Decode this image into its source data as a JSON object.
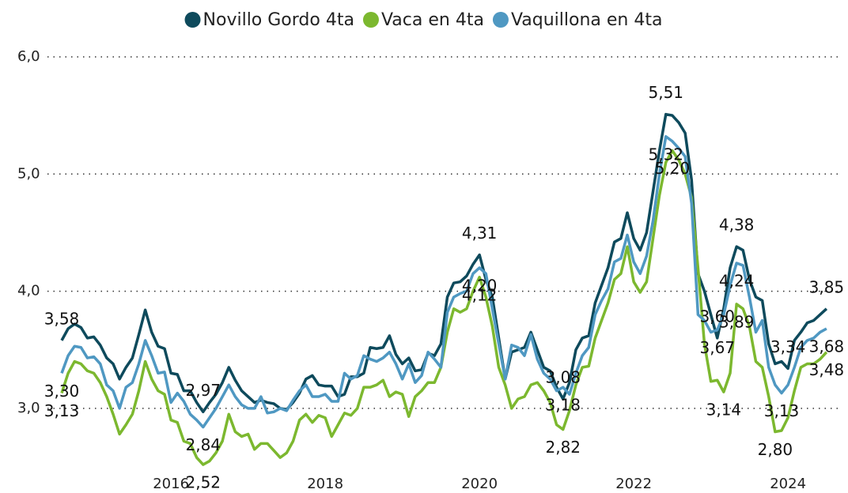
{
  "chart_data": {
    "type": "line",
    "categories": [
      null,
      null,
      null,
      null,
      null,
      null,
      null,
      null,
      null,
      null,
      null,
      null,
      null,
      null,
      null,
      null,
      null,
      "2016",
      null,
      null,
      null,
      null,
      null,
      null,
      null,
      null,
      null,
      null,
      null,
      null,
      null,
      null,
      null,
      null,
      null,
      null,
      null,
      null,
      null,
      null,
      null,
      "2018",
      null,
      null,
      null,
      null,
      null,
      null,
      null,
      null,
      null,
      null,
      null,
      null,
      null,
      null,
      null,
      null,
      null,
      null,
      null,
      null,
      null,
      null,
      null,
      "2020",
      null,
      null,
      null,
      null,
      null,
      null,
      null,
      null,
      null,
      null,
      null,
      null,
      null,
      null,
      null,
      null,
      null,
      null,
      null,
      null,
      null,
      null,
      null,
      "2022",
      null,
      null,
      null,
      null,
      null,
      null,
      null,
      null,
      null,
      null,
      null,
      null,
      null,
      null,
      null,
      null,
      null,
      null,
      null,
      null,
      null,
      null,
      null,
      "2024",
      null,
      null,
      null,
      null,
      null,
      null
    ],
    "ylim": [
      2.5,
      6.0
    ],
    "yticks": [
      {
        "value": 3,
        "label": "3,0"
      },
      {
        "value": 4,
        "label": "4,0"
      },
      {
        "value": 5,
        "label": "5,0"
      },
      {
        "value": 6,
        "label": "6,0"
      }
    ],
    "grid": true,
    "legend": "top",
    "series": [
      {
        "name": "Novillo Gordo 4ta",
        "color": "#0e4a5c",
        "values": [
          3.58,
          3.68,
          3.72,
          3.69,
          3.6,
          3.61,
          3.54,
          3.43,
          3.38,
          3.25,
          3.35,
          3.43,
          3.63,
          3.84,
          3.65,
          3.53,
          3.51,
          3.3,
          3.29,
          3.15,
          3.15,
          3.05,
          2.97,
          3.05,
          3.12,
          3.22,
          3.35,
          3.24,
          3.15,
          3.1,
          3.05,
          3.07,
          3.05,
          3.04,
          3.0,
          2.99,
          3.05,
          3.13,
          3.25,
          3.28,
          3.2,
          3.19,
          3.19,
          3.1,
          3.12,
          3.27,
          3.27,
          3.3,
          3.52,
          3.51,
          3.52,
          3.62,
          3.46,
          3.38,
          3.43,
          3.32,
          3.33,
          3.47,
          3.45,
          3.55,
          3.95,
          4.07,
          4.08,
          4.13,
          4.23,
          4.31,
          4.1,
          3.95,
          3.6,
          3.25,
          3.48,
          3.5,
          3.52,
          3.65,
          3.5,
          3.35,
          3.32,
          3.18,
          3.08,
          3.22,
          3.5,
          3.6,
          3.62,
          3.9,
          4.05,
          4.2,
          4.42,
          4.45,
          4.67,
          4.45,
          4.35,
          4.5,
          4.85,
          5.2,
          5.51,
          5.5,
          5.44,
          5.35,
          4.95,
          4.15,
          4.0,
          3.8,
          3.6,
          3.85,
          4.2,
          4.38,
          4.35,
          4.1,
          3.95,
          3.92,
          3.55,
          3.38,
          3.4,
          3.34,
          3.58,
          3.65,
          3.73,
          3.75,
          3.8,
          3.85
        ],
        "value_labels": [
          "3,58",
          null,
          null,
          null,
          null,
          null,
          null,
          null,
          null,
          null,
          null,
          null,
          null,
          null,
          null,
          null,
          null,
          null,
          null,
          null,
          null,
          null,
          "2,97",
          null,
          null,
          null,
          null,
          null,
          null,
          null,
          null,
          null,
          null,
          null,
          null,
          null,
          null,
          null,
          null,
          null,
          null,
          null,
          null,
          null,
          null,
          null,
          null,
          null,
          null,
          null,
          null,
          null,
          null,
          null,
          null,
          null,
          null,
          null,
          null,
          null,
          null,
          null,
          null,
          null,
          null,
          "4,31",
          null,
          null,
          null,
          null,
          null,
          null,
          null,
          null,
          null,
          null,
          null,
          null,
          "3,08",
          null,
          null,
          null,
          null,
          null,
          null,
          null,
          null,
          null,
          null,
          null,
          null,
          null,
          null,
          null,
          "5,51",
          null,
          null,
          null,
          null,
          null,
          null,
          null,
          "3,60",
          null,
          null,
          "4,38",
          null,
          null,
          null,
          null,
          null,
          null,
          null,
          "3,34",
          null,
          null,
          null,
          null,
          null,
          "3,85"
        ]
      },
      {
        "name": "Vaca en 4ta",
        "color": "#7cb82f",
        "values": [
          3.13,
          3.3,
          3.4,
          3.38,
          3.32,
          3.3,
          3.22,
          3.1,
          2.95,
          2.78,
          2.86,
          2.95,
          3.15,
          3.4,
          3.25,
          3.15,
          3.12,
          2.9,
          2.88,
          2.72,
          2.7,
          2.58,
          2.52,
          2.55,
          2.62,
          2.72,
          2.95,
          2.8,
          2.76,
          2.78,
          2.65,
          2.7,
          2.7,
          2.64,
          2.58,
          2.62,
          2.72,
          2.9,
          2.95,
          2.88,
          2.94,
          2.92,
          2.76,
          2.86,
          2.96,
          2.94,
          3.0,
          3.18,
          3.18,
          3.2,
          3.24,
          3.1,
          3.14,
          3.12,
          2.93,
          3.1,
          3.15,
          3.22,
          3.22,
          3.35,
          3.65,
          3.85,
          3.82,
          3.85,
          4.0,
          4.12,
          3.95,
          3.7,
          3.35,
          3.2,
          3.0,
          3.08,
          3.1,
          3.2,
          3.22,
          3.15,
          3.05,
          2.86,
          2.82,
          2.98,
          3.2,
          3.35,
          3.36,
          3.6,
          3.75,
          3.9,
          4.1,
          4.15,
          4.38,
          4.08,
          3.99,
          4.08,
          4.45,
          4.82,
          5.1,
          5.2,
          5.12,
          5.0,
          4.8,
          4.2,
          3.55,
          3.23,
          3.24,
          3.14,
          3.3,
          3.89,
          3.85,
          3.7,
          3.4,
          3.35,
          3.1,
          2.8,
          2.81,
          2.92,
          3.15,
          3.35,
          3.38,
          3.38,
          3.42,
          3.48
        ],
        "value_labels": [
          "3,13",
          null,
          null,
          null,
          null,
          null,
          null,
          null,
          null,
          null,
          null,
          null,
          null,
          null,
          null,
          null,
          null,
          null,
          null,
          null,
          null,
          null,
          "2,52",
          null,
          null,
          null,
          null,
          null,
          null,
          null,
          null,
          null,
          null,
          null,
          null,
          null,
          null,
          null,
          null,
          null,
          null,
          null,
          null,
          null,
          null,
          null,
          null,
          null,
          null,
          null,
          null,
          null,
          null,
          null,
          null,
          null,
          null,
          null,
          null,
          null,
          null,
          null,
          null,
          null,
          null,
          "4,12",
          null,
          null,
          null,
          null,
          null,
          null,
          null,
          null,
          null,
          null,
          null,
          null,
          "2,82",
          null,
          null,
          null,
          null,
          null,
          null,
          null,
          null,
          null,
          null,
          null,
          null,
          null,
          null,
          null,
          null,
          "5,20",
          null,
          null,
          null,
          null,
          null,
          null,
          null,
          "3,14",
          null,
          "3,89",
          null,
          null,
          null,
          null,
          null,
          "2,80",
          null,
          null,
          null,
          null,
          null,
          null,
          null,
          "3,48"
        ]
      },
      {
        "name": "Vaquillona en 4ta",
        "color": "#4f98c2",
        "values": [
          3.3,
          3.45,
          3.53,
          3.52,
          3.43,
          3.44,
          3.38,
          3.2,
          3.15,
          3.0,
          3.18,
          3.22,
          3.38,
          3.58,
          3.45,
          3.3,
          3.31,
          3.05,
          3.13,
          3.06,
          2.95,
          2.9,
          2.84,
          2.92,
          3.0,
          3.1,
          3.2,
          3.1,
          3.03,
          3.0,
          3.0,
          3.1,
          2.96,
          2.97,
          3.0,
          2.98,
          3.07,
          3.15,
          3.2,
          3.1,
          3.1,
          3.12,
          3.06,
          3.06,
          3.3,
          3.25,
          3.28,
          3.45,
          3.42,
          3.4,
          3.43,
          3.48,
          3.38,
          3.25,
          3.38,
          3.22,
          3.28,
          3.48,
          3.42,
          3.35,
          3.82,
          3.95,
          3.98,
          4.0,
          4.15,
          4.2,
          4.15,
          3.85,
          3.55,
          3.25,
          3.54,
          3.52,
          3.45,
          3.63,
          3.42,
          3.3,
          3.25,
          3.15,
          3.18,
          3.12,
          3.3,
          3.45,
          3.52,
          3.8,
          3.92,
          4.02,
          4.25,
          4.28,
          4.48,
          4.25,
          4.15,
          4.3,
          4.6,
          5.0,
          5.32,
          5.28,
          5.22,
          5.15,
          4.75,
          3.8,
          3.75,
          3.65,
          3.67,
          3.8,
          4.05,
          4.24,
          4.22,
          3.95,
          3.65,
          3.75,
          3.35,
          3.2,
          3.13,
          3.2,
          3.35,
          3.52,
          3.58,
          3.6,
          3.65,
          3.68
        ],
        "value_labels": [
          "3,30",
          null,
          null,
          null,
          null,
          null,
          null,
          null,
          null,
          null,
          null,
          null,
          null,
          null,
          null,
          null,
          null,
          null,
          null,
          null,
          null,
          null,
          "2,84",
          null,
          null,
          null,
          null,
          null,
          null,
          null,
          null,
          null,
          null,
          null,
          null,
          null,
          null,
          null,
          null,
          null,
          null,
          null,
          null,
          null,
          null,
          null,
          null,
          null,
          null,
          null,
          null,
          null,
          null,
          null,
          null,
          null,
          null,
          null,
          null,
          null,
          null,
          null,
          null,
          null,
          null,
          "4,20",
          null,
          null,
          null,
          null,
          null,
          null,
          null,
          null,
          null,
          null,
          null,
          null,
          "3,18",
          null,
          null,
          null,
          null,
          null,
          null,
          null,
          null,
          null,
          null,
          null,
          null,
          null,
          null,
          null,
          "5,32",
          null,
          null,
          null,
          null,
          null,
          null,
          null,
          "3,67",
          null,
          null,
          "4,24",
          null,
          null,
          null,
          null,
          null,
          null,
          "3,13",
          null,
          null,
          null,
          null,
          null,
          null,
          "3,68"
        ]
      }
    ]
  }
}
